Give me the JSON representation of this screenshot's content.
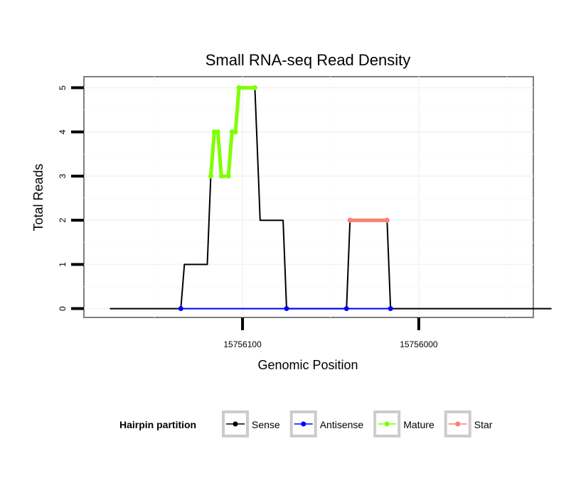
{
  "chart_data": {
    "type": "line",
    "title": "Small RNA-seq Read Density",
    "xlabel": "Genomic Position",
    "ylabel": "Total Reads",
    "x_reversed": true,
    "xlim": [
      15756190,
      15755935
    ],
    "ylim": [
      -0.2,
      5.25
    ],
    "x_ticks": [
      15756100,
      15756000
    ],
    "x_tick_labels": [
      "15756100",
      "15756000"
    ],
    "y_ticks": [
      0,
      1,
      2,
      3,
      4,
      5
    ],
    "y_tick_labels": [
      "0",
      "1",
      "2",
      "3",
      "4",
      "5"
    ],
    "grid": true,
    "legend_position": "bottom",
    "legend_title": "Hairpin partition",
    "series": [
      {
        "name": "Sense",
        "color": "#000000",
        "points": [
          [
            15756175,
            0
          ],
          [
            15756135,
            0
          ],
          [
            15756133,
            1
          ],
          [
            15756120,
            1
          ],
          [
            15756118,
            3
          ],
          [
            15756116,
            4
          ],
          [
            15756114,
            4
          ],
          [
            15756112,
            3
          ],
          [
            15756108,
            3
          ],
          [
            15756106,
            4
          ],
          [
            15756104,
            4
          ],
          [
            15756102,
            5
          ],
          [
            15756093,
            5
          ],
          [
            15756091,
            3
          ],
          [
            15756090,
            2
          ],
          [
            15756077,
            2
          ],
          [
            15756075,
            0
          ],
          [
            15756041,
            0
          ],
          [
            15756039,
            2
          ],
          [
            15756018,
            2
          ],
          [
            15756016,
            0
          ],
          [
            15755925,
            0
          ]
        ]
      },
      {
        "name": "Antisense",
        "color": "#0000ff",
        "points": [
          [
            15756135,
            0
          ],
          [
            15756075,
            0
          ],
          [
            15756041,
            0
          ],
          [
            15756016,
            0
          ]
        ]
      },
      {
        "name": "Mature",
        "color": "#7fff00",
        "points": [
          [
            15756118,
            3
          ],
          [
            15756116,
            4
          ],
          [
            15756114,
            4
          ],
          [
            15756112,
            3
          ],
          [
            15756108,
            3
          ],
          [
            15756106,
            4
          ],
          [
            15756104,
            4
          ],
          [
            15756102,
            5
          ],
          [
            15756093,
            5
          ]
        ]
      },
      {
        "name": "Star",
        "color": "#fa8072",
        "points": [
          [
            15756039,
            2
          ],
          [
            15756018,
            2
          ]
        ]
      }
    ]
  }
}
